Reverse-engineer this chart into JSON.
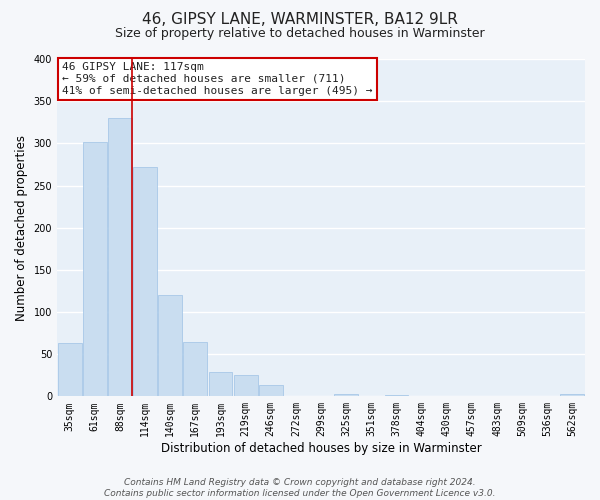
{
  "title": "46, GIPSY LANE, WARMINSTER, BA12 9LR",
  "subtitle": "Size of property relative to detached houses in Warminster",
  "bar_labels": [
    "35sqm",
    "61sqm",
    "88sqm",
    "114sqm",
    "140sqm",
    "167sqm",
    "193sqm",
    "219sqm",
    "246sqm",
    "272sqm",
    "299sqm",
    "325sqm",
    "351sqm",
    "378sqm",
    "404sqm",
    "430sqm",
    "457sqm",
    "483sqm",
    "509sqm",
    "536sqm",
    "562sqm"
  ],
  "bar_values": [
    63,
    302,
    330,
    272,
    120,
    65,
    29,
    25,
    13,
    0,
    0,
    3,
    0,
    2,
    0,
    0,
    0,
    0,
    0,
    0,
    3
  ],
  "bar_color": "#c9ddf0",
  "bar_edge_color": "#a8c8e8",
  "ylabel": "Number of detached properties",
  "xlabel": "Distribution of detached houses by size in Warminster",
  "ylim": [
    0,
    400
  ],
  "yticks": [
    0,
    50,
    100,
    150,
    200,
    250,
    300,
    350,
    400
  ],
  "annotation_title": "46 GIPSY LANE: 117sqm",
  "annotation_line1": "← 59% of detached houses are smaller (711)",
  "annotation_line2": "41% of semi-detached houses are larger (495) →",
  "annotation_box_color": "#ffffff",
  "annotation_box_edge": "#cc0000",
  "vline_color": "#cc0000",
  "vline_x": 2.5,
  "footer_line1": "Contains HM Land Registry data © Crown copyright and database right 2024.",
  "footer_line2": "Contains public sector information licensed under the Open Government Licence v3.0.",
  "plot_bg_color": "#e8f0f8",
  "fig_bg_color": "#f5f7fa",
  "grid_color": "#ffffff",
  "title_fontsize": 11,
  "subtitle_fontsize": 9,
  "tick_fontsize": 7,
  "ylabel_fontsize": 8.5,
  "xlabel_fontsize": 8.5,
  "annotation_fontsize": 8,
  "footer_fontsize": 6.5
}
